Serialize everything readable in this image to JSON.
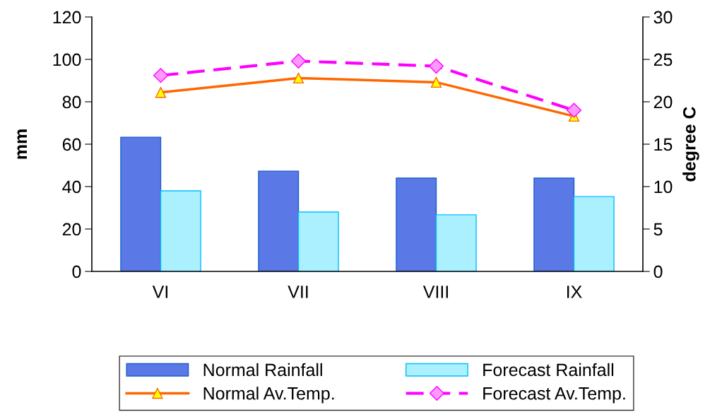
{
  "chart_data": {
    "type": "bar",
    "categories": [
      "VI",
      "VII",
      "VIII",
      "IX"
    ],
    "ylabel": "mm",
    "y2label": "degree C",
    "ylim": [
      0,
      120
    ],
    "yticks": [
      0,
      20,
      40,
      60,
      80,
      100,
      120
    ],
    "y2lim": [
      0,
      30
    ],
    "y2ticks": [
      0,
      5,
      10,
      15,
      20,
      25,
      30
    ],
    "series": [
      {
        "name": "Normal Rainfall",
        "color": "#5a78e6",
        "values": [
          63.3,
          47.3,
          44,
          44
        ]
      },
      {
        "name": "Forecast Rainfall",
        "color": "#aaf0ff",
        "values": [
          38,
          28,
          26.7,
          35.3
        ]
      },
      {
        "name": "Normal Av.Temp.",
        "type": "line",
        "axis": "y2",
        "color": "#ff6600",
        "marker": "triangle",
        "line_style": "solid",
        "values": [
          21.1,
          22.8,
          22.3,
          18.3
        ]
      },
      {
        "name": "Forecast Av.Temp.",
        "type": "line",
        "axis": "y2",
        "color": "#ff00ff",
        "marker": "diamond",
        "line_style": "dashed",
        "values": [
          23.1,
          24.8,
          24.2,
          19.0
        ]
      }
    ],
    "legend": "bottom",
    "grid": false
  }
}
